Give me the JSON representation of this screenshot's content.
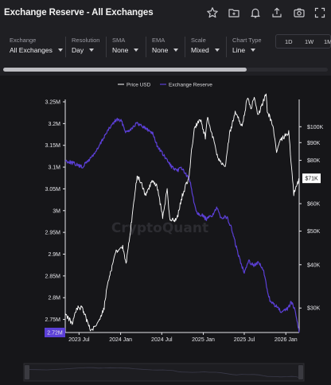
{
  "header": {
    "title": "Exchange Reserve - All Exchanges",
    "icons": [
      "star-icon",
      "folder-icon",
      "bell-icon",
      "share-icon",
      "camera-icon",
      "fullscreen-icon"
    ]
  },
  "controls": [
    {
      "label": "Exchange",
      "value": "All Exchanges"
    },
    {
      "label": "Resolution",
      "value": "Day"
    },
    {
      "label": "SMA",
      "value": "None"
    },
    {
      "label": "EMA",
      "value": "None"
    },
    {
      "label": "Scale",
      "value": "Mixed"
    },
    {
      "label": "Chart Type",
      "value": "Line"
    }
  ],
  "ranges": [
    "1D",
    "1W",
    "1M"
  ],
  "colors": {
    "background": "#1f1f23",
    "panel": "#161619",
    "price_line": "#ffffff",
    "reserve_line": "#5b3fd6",
    "reserve_tag": "#5b3fd6"
  },
  "watermark": "CryptoQuant",
  "chart_data": {
    "type": "line",
    "legend": [
      "Price USD",
      "Exchange Reserve"
    ],
    "legend_position": "top-center",
    "grid": false,
    "x_tick_labels": [
      "2023 Jul",
      "2024 Jan",
      "2024 Jul",
      "2025 Jan",
      "2025 Jul",
      "2026 Jan"
    ],
    "left_axis": {
      "series": "Exchange Reserve",
      "range": [
        2.72,
        3.25
      ],
      "unit": "M",
      "tick_values": [
        3.25,
        3.2,
        3.15,
        3.1,
        3.05,
        3.0,
        2.95,
        2.9,
        2.85,
        2.8,
        2.75
      ],
      "tick_labels": [
        "3.25M",
        "3.2M",
        "3.15M",
        "3.1M",
        "3.05M",
        "3M",
        "2.95M",
        "2.9M",
        "2.85M",
        "2.8M",
        "2.75M"
      ],
      "last_value_label": "2.72M"
    },
    "right_axis": {
      "series": "Price USD",
      "scale": "log",
      "tick_values": [
        100000,
        90000,
        80000,
        60000,
        50000,
        40000,
        30000
      ],
      "tick_labels": [
        "$100K",
        "$90K",
        "$80K",
        "$60K",
        "$50K",
        "$40K",
        "$30K"
      ],
      "last_value_label": "$71K"
    },
    "series": [
      {
        "name": "Price USD",
        "axis": "right",
        "points": [
          [
            "2023-05-01",
            29000
          ],
          [
            "2023-06-01",
            27000
          ],
          [
            "2023-06-20",
            30000
          ],
          [
            "2023-07-15",
            30000
          ],
          [
            "2023-08-20",
            26000
          ],
          [
            "2023-09-15",
            26500
          ],
          [
            "2023-10-20",
            30000
          ],
          [
            "2023-11-01",
            34500
          ],
          [
            "2023-12-10",
            43500
          ],
          [
            "2024-01-10",
            45000
          ],
          [
            "2024-01-25",
            40000
          ],
          [
            "2024-02-10",
            48000
          ],
          [
            "2024-02-28",
            60000
          ],
          [
            "2024-03-14",
            72000
          ],
          [
            "2024-04-01",
            69000
          ],
          [
            "2024-04-20",
            63500
          ],
          [
            "2024-05-20",
            70000
          ],
          [
            "2024-06-10",
            67500
          ],
          [
            "2024-07-05",
            55000
          ],
          [
            "2024-07-25",
            66000
          ],
          [
            "2024-08-05",
            54000
          ],
          [
            "2024-09-06",
            54000
          ],
          [
            "2024-09-30",
            63500
          ],
          [
            "2024-10-30",
            72000
          ],
          [
            "2024-11-12",
            88000
          ],
          [
            "2024-11-22",
            98000
          ],
          [
            "2024-12-17",
            106000
          ],
          [
            "2025-01-10",
            93000
          ],
          [
            "2025-01-20",
            106000
          ],
          [
            "2025-02-25",
            86000
          ],
          [
            "2025-03-10",
            80000
          ],
          [
            "2025-04-08",
            76000
          ],
          [
            "2025-04-25",
            94000
          ],
          [
            "2025-05-22",
            110000
          ],
          [
            "2025-06-22",
            100000
          ],
          [
            "2025-07-14",
            121000
          ],
          [
            "2025-08-02",
            113000
          ],
          [
            "2025-08-14",
            123000
          ],
          [
            "2025-09-01",
            108000
          ],
          [
            "2025-10-06",
            125000
          ],
          [
            "2025-10-11",
            111000
          ],
          [
            "2025-11-05",
            101000
          ],
          [
            "2025-11-21",
            84000
          ],
          [
            "2025-12-10",
            92000
          ],
          [
            "2026-01-14",
            96000
          ],
          [
            "2026-02-05",
            64000
          ],
          [
            "2026-02-20",
            68000
          ],
          [
            "2026-03-01",
            71000
          ]
        ]
      },
      {
        "name": "Exchange Reserve",
        "axis": "left",
        "points": [
          [
            "2023-05-01",
            3.115
          ],
          [
            "2023-06-01",
            3.11
          ],
          [
            "2023-07-15",
            3.1
          ],
          [
            "2023-08-20",
            3.12
          ],
          [
            "2023-09-20",
            3.14
          ],
          [
            "2023-10-20",
            3.17
          ],
          [
            "2023-11-20",
            3.195
          ],
          [
            "2023-12-15",
            3.21
          ],
          [
            "2024-01-05",
            3.205
          ],
          [
            "2024-01-25",
            3.18
          ],
          [
            "2024-02-20",
            3.19
          ],
          [
            "2024-03-10",
            3.2
          ],
          [
            "2024-04-05",
            3.195
          ],
          [
            "2024-05-01",
            3.185
          ],
          [
            "2024-05-20",
            3.18
          ],
          [
            "2024-06-10",
            3.15
          ],
          [
            "2024-07-05",
            3.13
          ],
          [
            "2024-07-25",
            3.115
          ],
          [
            "2024-08-15",
            3.1
          ],
          [
            "2024-09-05",
            3.09
          ],
          [
            "2024-09-25",
            3.1
          ],
          [
            "2024-10-20",
            3.08
          ],
          [
            "2024-11-05",
            3.065
          ],
          [
            "2024-11-20",
            3.02
          ],
          [
            "2024-12-05",
            2.995
          ],
          [
            "2024-12-25",
            2.99
          ],
          [
            "2025-01-15",
            2.98
          ],
          [
            "2025-02-10",
            2.99
          ],
          [
            "2025-03-01",
            3.005
          ],
          [
            "2025-03-20",
            2.985
          ],
          [
            "2025-04-15",
            2.985
          ],
          [
            "2025-05-05",
            2.96
          ],
          [
            "2025-05-25",
            2.92
          ],
          [
            "2025-06-15",
            2.88
          ],
          [
            "2025-07-01",
            2.86
          ],
          [
            "2025-07-20",
            2.885
          ],
          [
            "2025-08-10",
            2.875
          ],
          [
            "2025-09-05",
            2.88
          ],
          [
            "2025-09-25",
            2.86
          ],
          [
            "2025-10-10",
            2.82
          ],
          [
            "2025-10-25",
            2.79
          ],
          [
            "2025-11-20",
            2.78
          ],
          [
            "2025-12-15",
            2.765
          ],
          [
            "2026-01-10",
            2.775
          ],
          [
            "2026-01-25",
            2.79
          ],
          [
            "2026-02-10",
            2.775
          ],
          [
            "2026-03-01",
            2.72
          ]
        ]
      }
    ]
  }
}
